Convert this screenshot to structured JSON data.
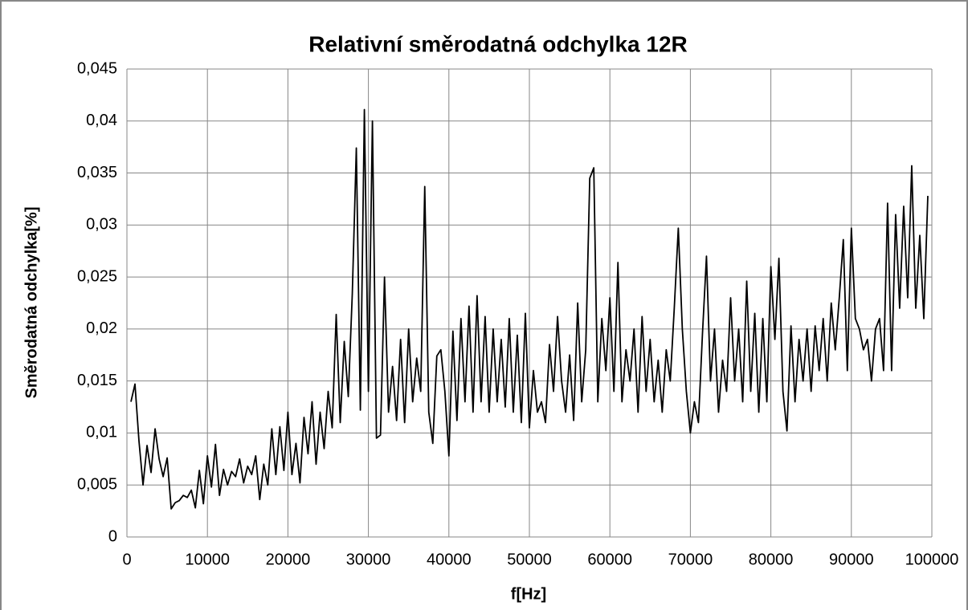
{
  "chart_data": {
    "type": "line",
    "title": "Relativní směrodatná odchylka 12R",
    "x_label": "f[Hz]",
    "y_label": "Směrodatná odchylka[%]",
    "color": "#000000",
    "grid": true,
    "xlim": [
      0,
      100000
    ],
    "xticks": [
      0,
      10000,
      20000,
      30000,
      40000,
      50000,
      60000,
      70000,
      80000,
      90000,
      100000
    ],
    "ylim": [
      0,
      0.045
    ],
    "yticks": [
      0,
      {
        "value": 0.005,
        "label": "0,005"
      },
      {
        "value": 0.01,
        "label": "0,01"
      },
      {
        "value": 0.015,
        "label": "0,015"
      },
      {
        "value": 0.02,
        "label": "0,02"
      },
      {
        "value": 0.025,
        "label": "0,025"
      },
      {
        "value": 0.03,
        "label": "0,03"
      },
      {
        "value": 0.035,
        "label": "0,035"
      },
      {
        "value": 0.04,
        "label": "0,04"
      },
      {
        "value": 0.045,
        "label": "0,045"
      }
    ],
    "x": [
      500,
      1000,
      1500,
      2000,
      2500,
      3000,
      3500,
      4000,
      4500,
      5000,
      5500,
      6000,
      6500,
      7000,
      7500,
      8000,
      8500,
      9000,
      9500,
      10000,
      10500,
      11000,
      11500,
      12000,
      12500,
      13000,
      13500,
      14000,
      14500,
      15000,
      15500,
      16000,
      16500,
      17000,
      17500,
      18000,
      18500,
      19000,
      19500,
      20000,
      20500,
      21000,
      21500,
      22000,
      22500,
      23000,
      23500,
      24000,
      24500,
      25000,
      25500,
      26000,
      26500,
      27000,
      27500,
      28000,
      28500,
      29000,
      29500,
      30000,
      30500,
      31000,
      31500,
      32000,
      32500,
      33000,
      33500,
      34000,
      34500,
      35000,
      35500,
      36000,
      36500,
      37000,
      37500,
      38000,
      38500,
      39000,
      39500,
      40000,
      40500,
      41000,
      41500,
      42000,
      42500,
      43000,
      43500,
      44000,
      44500,
      45000,
      45500,
      46000,
      46500,
      47000,
      47500,
      48000,
      48500,
      49000,
      49500,
      50000,
      50500,
      51000,
      51500,
      52000,
      52500,
      53000,
      53500,
      54000,
      54500,
      55000,
      55500,
      56000,
      56500,
      57000,
      57500,
      58000,
      58500,
      59000,
      59500,
      60000,
      60500,
      61000,
      61500,
      62000,
      62500,
      63000,
      63500,
      64000,
      64500,
      65000,
      65500,
      66000,
      66500,
      67000,
      67500,
      68000,
      68500,
      69000,
      69500,
      70000,
      70500,
      71000,
      71500,
      72000,
      72500,
      73000,
      73500,
      74000,
      74500,
      75000,
      75500,
      76000,
      76500,
      77000,
      77500,
      78000,
      78500,
      79000,
      79500,
      80000,
      80500,
      81000,
      81500,
      82000,
      82500,
      83000,
      83500,
      84000,
      84500,
      85000,
      85500,
      86000,
      86500,
      87000,
      87500,
      88000,
      88500,
      89000,
      89500,
      90000,
      90500,
      91000,
      91500,
      92000,
      92500,
      93000,
      93500,
      94000,
      94500,
      95000,
      95500,
      96000,
      96500,
      97000,
      97500,
      98000,
      98500,
      99000,
      99500
    ],
    "values": [
      0.013,
      0.0147,
      0.0092,
      0.005,
      0.0088,
      0.0062,
      0.0104,
      0.0075,
      0.0058,
      0.0076,
      0.0027,
      0.0033,
      0.0035,
      0.004,
      0.0038,
      0.0045,
      0.0028,
      0.0064,
      0.0032,
      0.0078,
      0.0048,
      0.0089,
      0.004,
      0.0065,
      0.005,
      0.0063,
      0.0058,
      0.0075,
      0.0052,
      0.0068,
      0.006,
      0.0078,
      0.0036,
      0.007,
      0.005,
      0.0104,
      0.006,
      0.0106,
      0.0064,
      0.012,
      0.006,
      0.009,
      0.0052,
      0.0115,
      0.008,
      0.013,
      0.007,
      0.012,
      0.0085,
      0.014,
      0.0105,
      0.0214,
      0.011,
      0.0188,
      0.0135,
      0.0234,
      0.0374,
      0.0122,
      0.0411,
      0.014,
      0.04,
      0.0095,
      0.0098,
      0.025,
      0.012,
      0.0164,
      0.0112,
      0.019,
      0.011,
      0.02,
      0.013,
      0.0172,
      0.014,
      0.0337,
      0.012,
      0.009,
      0.0174,
      0.018,
      0.014,
      0.0078,
      0.0198,
      0.0112,
      0.021,
      0.013,
      0.0222,
      0.012,
      0.0232,
      0.013,
      0.0212,
      0.012,
      0.02,
      0.013,
      0.019,
      0.0125,
      0.021,
      0.012,
      0.0194,
      0.011,
      0.0215,
      0.0105,
      0.016,
      0.012,
      0.013,
      0.011,
      0.0185,
      0.014,
      0.0212,
      0.015,
      0.012,
      0.0175,
      0.0112,
      0.0225,
      0.013,
      0.018,
      0.0345,
      0.0355,
      0.013,
      0.021,
      0.016,
      0.023,
      0.014,
      0.0264,
      0.013,
      0.018,
      0.015,
      0.02,
      0.012,
      0.0212,
      0.014,
      0.019,
      0.013,
      0.017,
      0.012,
      0.018,
      0.015,
      0.022,
      0.0297,
      0.02,
      0.014,
      0.01,
      0.013,
      0.011,
      0.0195,
      0.027,
      0.015,
      0.02,
      0.012,
      0.017,
      0.014,
      0.023,
      0.015,
      0.02,
      0.013,
      0.0246,
      0.014,
      0.0215,
      0.012,
      0.021,
      0.013,
      0.026,
      0.019,
      0.0268,
      0.014,
      0.0102,
      0.0203,
      0.013,
      0.019,
      0.015,
      0.02,
      0.014,
      0.0203,
      0.016,
      0.021,
      0.015,
      0.0225,
      0.018,
      0.023,
      0.0286,
      0.016,
      0.0297,
      0.021,
      0.02,
      0.018,
      0.019,
      0.015,
      0.02,
      0.021,
      0.016,
      0.0321,
      0.016,
      0.031,
      0.022,
      0.0318,
      0.023,
      0.0357,
      0.022,
      0.029,
      0.021,
      0.0328
    ]
  }
}
